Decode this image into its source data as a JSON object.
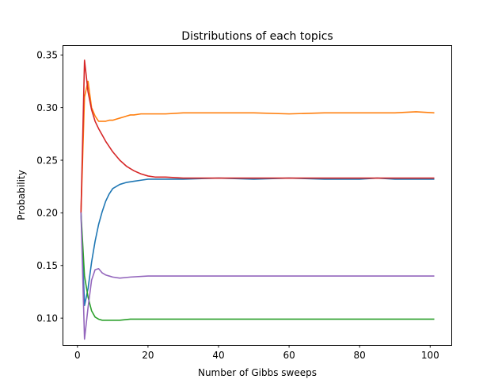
{
  "chart_data": {
    "type": "line",
    "title": "Distributions of each topics",
    "xlabel": "Number of Gibbs sweeps",
    "ylabel": "Probability",
    "xlim": [
      -4,
      106
    ],
    "ylim": [
      0.0745,
      0.3585
    ],
    "xticks": [
      0,
      20,
      40,
      60,
      80,
      100
    ],
    "yticks": [
      0.1,
      0.15,
      0.2,
      0.25,
      0.3,
      0.35
    ],
    "ytick_labels": [
      "0.10",
      "0.15",
      "0.20",
      "0.25",
      "0.30",
      "0.35"
    ],
    "grid": false,
    "legend": "none",
    "series": [
      {
        "color": "#1f77b4",
        "x": [
          1,
          2,
          3,
          4,
          5,
          6,
          7,
          8,
          9,
          10,
          12,
          14,
          16,
          18,
          20,
          25,
          30,
          40,
          50,
          60,
          70,
          75,
          80,
          85,
          90,
          95,
          101
        ],
        "y": [
          0.2,
          0.112,
          0.128,
          0.153,
          0.173,
          0.189,
          0.201,
          0.211,
          0.218,
          0.223,
          0.227,
          0.229,
          0.23,
          0.231,
          0.232,
          0.232,
          0.232,
          0.233,
          0.232,
          0.233,
          0.232,
          0.232,
          0.232,
          0.233,
          0.232,
          0.232,
          0.232
        ]
      },
      {
        "color": "#ff7f0e",
        "x": [
          1,
          2,
          3,
          4,
          5,
          6,
          7,
          8,
          9,
          10,
          11,
          12,
          13,
          14,
          15,
          16,
          18,
          20,
          25,
          30,
          40,
          50,
          60,
          70,
          80,
          90,
          96,
          101
        ],
        "y": [
          0.2,
          0.31,
          0.325,
          0.3,
          0.292,
          0.287,
          0.287,
          0.287,
          0.288,
          0.288,
          0.289,
          0.29,
          0.291,
          0.292,
          0.293,
          0.293,
          0.294,
          0.294,
          0.294,
          0.295,
          0.295,
          0.295,
          0.294,
          0.295,
          0.295,
          0.295,
          0.296,
          0.295
        ]
      },
      {
        "color": "#2ca02c",
        "x": [
          1,
          2,
          3,
          4,
          5,
          6,
          7,
          8,
          10,
          12,
          15,
          20,
          30,
          40,
          50,
          60,
          70,
          80,
          90,
          101
        ],
        "y": [
          0.2,
          0.14,
          0.12,
          0.107,
          0.101,
          0.099,
          0.098,
          0.098,
          0.098,
          0.098,
          0.099,
          0.099,
          0.099,
          0.099,
          0.099,
          0.099,
          0.099,
          0.099,
          0.099,
          0.099
        ]
      },
      {
        "color": "#d62728",
        "x": [
          1,
          2,
          3,
          4,
          5,
          6,
          7,
          8,
          9,
          10,
          12,
          14,
          16,
          18,
          20,
          22,
          25,
          30,
          40,
          50,
          60,
          70,
          80,
          90,
          101
        ],
        "y": [
          0.2,
          0.345,
          0.315,
          0.298,
          0.287,
          0.28,
          0.274,
          0.268,
          0.263,
          0.258,
          0.25,
          0.244,
          0.24,
          0.237,
          0.235,
          0.234,
          0.234,
          0.233,
          0.233,
          0.233,
          0.233,
          0.233,
          0.233,
          0.233,
          0.233
        ]
      },
      {
        "color": "#9467bd",
        "x": [
          1,
          2,
          3,
          4,
          5,
          6,
          7,
          8,
          9,
          10,
          12,
          15,
          20,
          30,
          40,
          50,
          60,
          70,
          80,
          90,
          101
        ],
        "y": [
          0.2,
          0.08,
          0.11,
          0.136,
          0.146,
          0.147,
          0.143,
          0.141,
          0.14,
          0.139,
          0.138,
          0.139,
          0.14,
          0.14,
          0.14,
          0.14,
          0.14,
          0.14,
          0.14,
          0.14,
          0.14
        ]
      }
    ]
  }
}
